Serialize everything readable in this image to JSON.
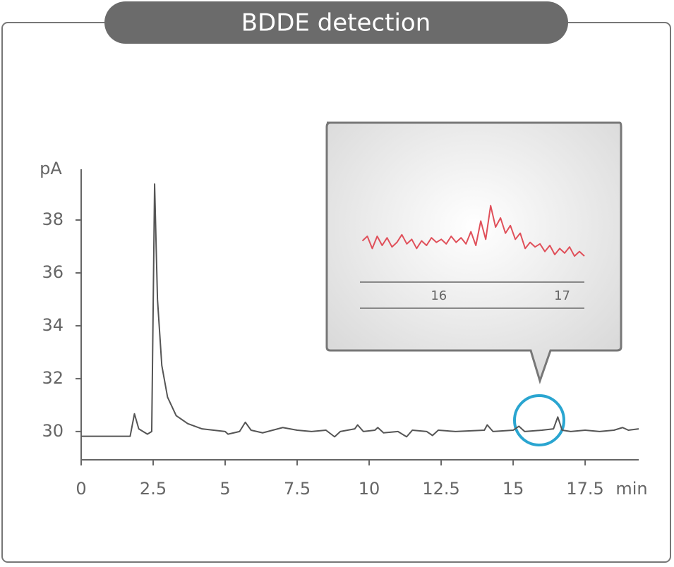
{
  "chart_data": [
    {
      "type": "line",
      "title": "BDDE detection",
      "x_label": "min",
      "y_label": "pA",
      "color": "#555555",
      "x": [
        0,
        1.7,
        1.85,
        2.0,
        2.3,
        2.45,
        2.55,
        2.65,
        2.8,
        3.0,
        3.3,
        3.7,
        4.2,
        5.0,
        5.1,
        5.5,
        5.7,
        5.9,
        6.3,
        7.0,
        7.5,
        8.0,
        8.5,
        8.8,
        9.0,
        9.5,
        9.6,
        9.8,
        10.2,
        10.3,
        10.5,
        11.0,
        11.3,
        11.5,
        12.0,
        12.2,
        12.4,
        13.0,
        14.0,
        14.1,
        14.3,
        15.0,
        15.2,
        15.4,
        16.0,
        16.4,
        16.55,
        16.7,
        17.0,
        17.5,
        18.0,
        18.5,
        18.8,
        19.0,
        19.36
      ],
      "values": [
        29.82,
        29.82,
        30.67,
        30.1,
        29.9,
        30.0,
        39.36,
        35.0,
        32.5,
        31.3,
        30.6,
        30.3,
        30.1,
        30.0,
        29.9,
        30.0,
        30.35,
        30.05,
        29.95,
        30.15,
        30.05,
        30.0,
        30.05,
        29.8,
        30.0,
        30.1,
        30.25,
        30.0,
        30.05,
        30.15,
        29.95,
        30.0,
        29.8,
        30.05,
        30.0,
        29.85,
        30.05,
        30.0,
        30.05,
        30.25,
        30.0,
        30.05,
        30.2,
        30.0,
        30.05,
        30.1,
        30.55,
        30.05,
        30.0,
        30.05,
        30.0,
        30.05,
        30.15,
        30.05,
        30.1
      ],
      "xlim": [
        0,
        19.36
      ],
      "xticks": [
        0,
        2.5,
        5,
        7.5,
        10,
        12.5,
        15,
        17.5
      ],
      "ylim": [
        28.93,
        39.92
      ],
      "yticks": [
        30,
        32,
        34,
        36,
        38
      ]
    },
    {
      "type": "line",
      "color": "#e0505a",
      "x": [
        15.38,
        15.42,
        15.46,
        15.5,
        15.54,
        15.58,
        15.62,
        15.66,
        15.7,
        15.74,
        15.78,
        15.82,
        15.86,
        15.9,
        15.94,
        15.98,
        16.02,
        16.06,
        16.1,
        16.14,
        16.18,
        16.22,
        16.26,
        16.3,
        16.34,
        16.38,
        16.42,
        16.46,
        16.5,
        16.54,
        16.58,
        16.62,
        16.66,
        16.7,
        16.74,
        16.78,
        16.82,
        16.86,
        16.9,
        16.94,
        16.98,
        17.02,
        17.06,
        17.1,
        17.14,
        17.18
      ],
      "values": [
        30.17,
        30.2,
        30.12,
        30.2,
        30.14,
        30.19,
        30.13,
        30.16,
        30.21,
        30.15,
        30.18,
        30.12,
        30.17,
        30.14,
        30.19,
        30.16,
        30.18,
        30.15,
        30.2,
        30.16,
        30.19,
        30.15,
        30.23,
        30.14,
        30.3,
        30.18,
        30.4,
        30.26,
        30.32,
        30.22,
        30.27,
        30.18,
        30.22,
        30.12,
        30.16,
        30.13,
        30.15,
        30.1,
        30.14,
        30.08,
        30.12,
        30.09,
        30.13,
        30.07,
        30.1,
        30.07
      ],
      "xlim": [
        15.36,
        17.18
      ],
      "xticks": [
        16,
        17
      ],
      "ylim": [
        29.9,
        30.5
      ]
    }
  ]
}
